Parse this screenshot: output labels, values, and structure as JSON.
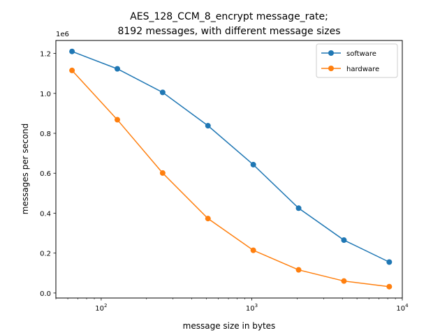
{
  "chart_data": {
    "type": "line",
    "title_line1": "AES_128_CCM_8_encrypt message_rate;",
    "title_line2": "8192 messages, with different message sizes",
    "xlabel": "message size in bytes",
    "ylabel": "messages per second",
    "y_offset_label": "1e6",
    "x_scale": "log",
    "xlim": [
      50,
      10000
    ],
    "ylim": [
      -0.025,
      1.265
    ],
    "grid": false,
    "legend_position": "top-right",
    "x": [
      64,
      128,
      256,
      512,
      1024,
      2048,
      4096,
      8192
    ],
    "series": [
      {
        "name": "software",
        "color": "#1f77b4",
        "values": [
          1.21,
          1.123,
          1.005,
          0.838,
          0.643,
          0.425,
          0.265,
          0.155
        ]
      },
      {
        "name": "hardware",
        "color": "#ff7f0e",
        "values": [
          1.115,
          0.868,
          0.601,
          0.373,
          0.214,
          0.116,
          0.06,
          0.032
        ]
      }
    ],
    "x_ticks": [
      {
        "value": 100,
        "base": "10",
        "exp": "2"
      },
      {
        "value": 1000,
        "base": "10",
        "exp": "3"
      },
      {
        "value": 10000,
        "base": "10",
        "exp": "4"
      }
    ],
    "y_ticks": [
      {
        "value": 0.0,
        "label": "0.0"
      },
      {
        "value": 0.2,
        "label": "0.2"
      },
      {
        "value": 0.4,
        "label": "0.4"
      },
      {
        "value": 0.6,
        "label": "0.6"
      },
      {
        "value": 0.8,
        "label": "0.8"
      },
      {
        "value": 1.0,
        "label": "1.0"
      },
      {
        "value": 1.2,
        "label": "1.2"
      }
    ]
  }
}
